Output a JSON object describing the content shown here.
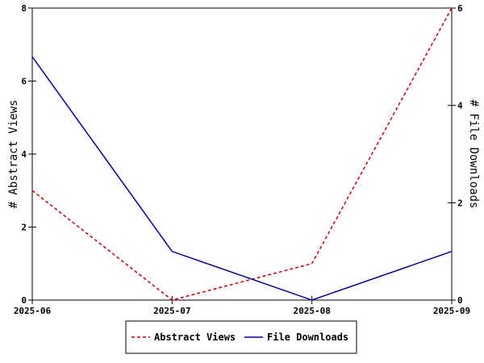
{
  "chart_data": {
    "type": "line",
    "x": [
      "2025-06",
      "2025-07",
      "2025-08",
      "2025-09"
    ],
    "y_left": {
      "label": "# Abstract Views",
      "ylim": [
        0,
        8
      ],
      "ticks": [
        0,
        2,
        4,
        6,
        8
      ]
    },
    "y_right": {
      "label": "# File Downloads",
      "ylim": [
        0,
        6
      ],
      "ticks": [
        0,
        2,
        4,
        6
      ]
    },
    "series": [
      {
        "name": "Abstract Views",
        "axis": "left",
        "values": [
          3,
          0,
          1,
          8
        ],
        "color": "#cc0000",
        "style": "dashed"
      },
      {
        "name": "File Downloads",
        "axis": "right",
        "values": [
          5,
          1,
          0,
          1
        ],
        "color": "#000099",
        "style": "solid"
      }
    ],
    "grid": false,
    "legend_position": "bottom-center"
  }
}
